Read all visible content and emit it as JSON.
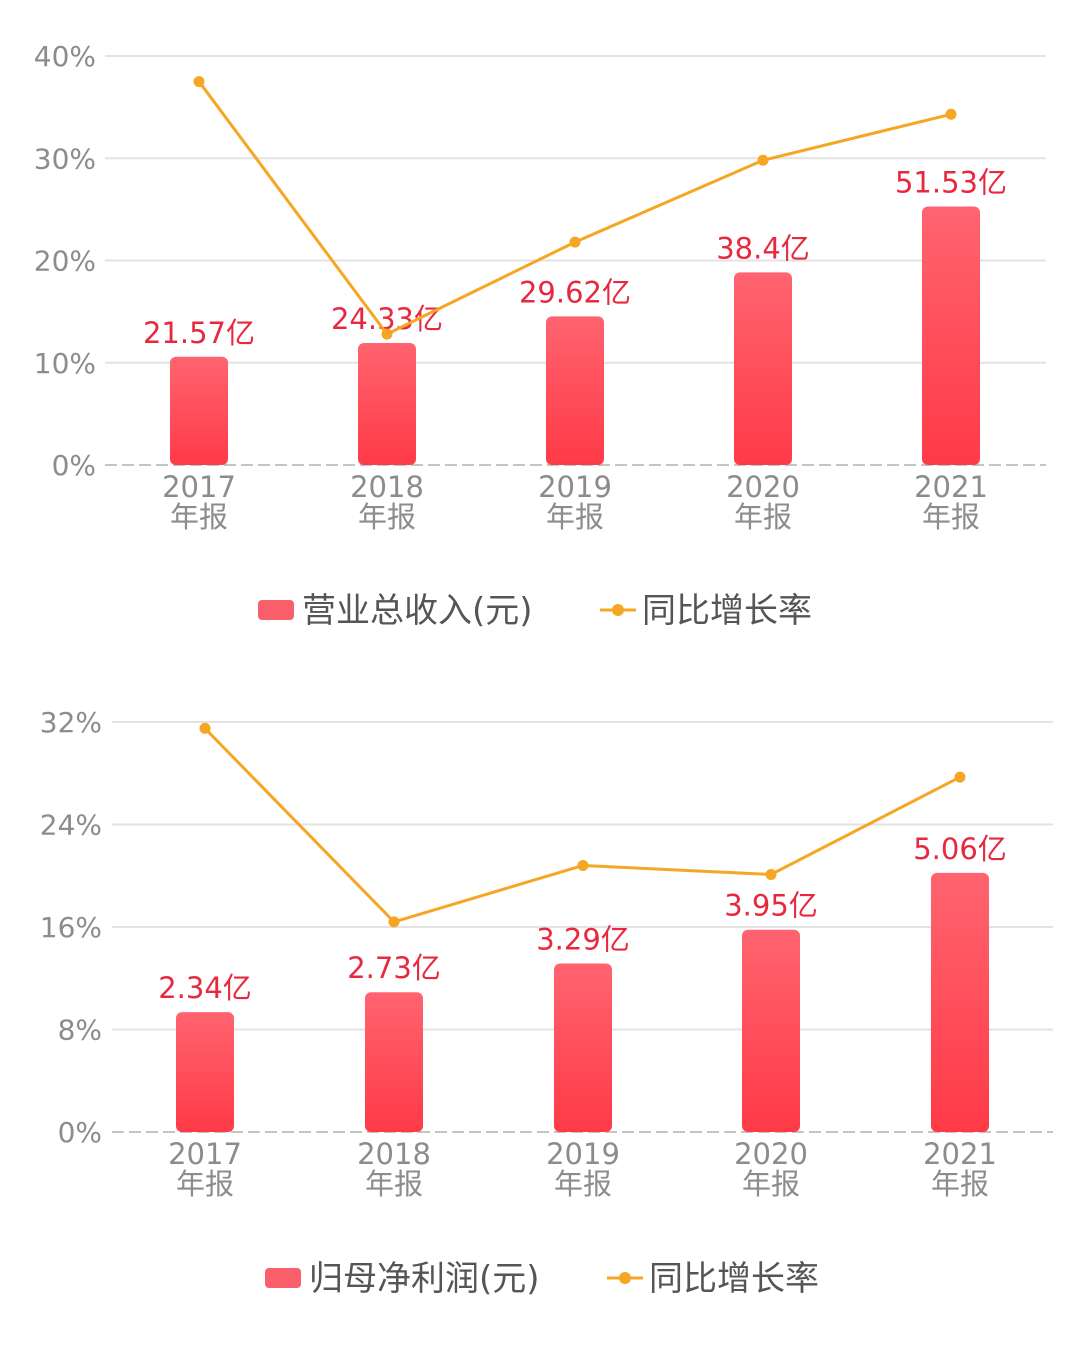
{
  "chart_data": [
    {
      "type": "bar+line",
      "categories": [
        [
          "2017",
          "年报"
        ],
        [
          "2018",
          "年报"
        ],
        [
          "2019",
          "年报"
        ],
        [
          "2020",
          "年报"
        ],
        [
          "2021",
          "年报"
        ]
      ],
      "bar_series": {
        "name": "营业总收入(元)",
        "values": [
          21.57,
          24.33,
          29.62,
          38.4,
          51.53
        ],
        "labels": [
          "21.57亿",
          "24.33亿",
          "29.62亿",
          "38.4亿",
          "51.53亿"
        ],
        "unit": "亿"
      },
      "line_series": {
        "name": "同比增长率",
        "values": [
          37.5,
          12.8,
          21.8,
          29.8,
          34.3
        ],
        "unit": "%"
      },
      "y_ticks": [
        "0%",
        "10%",
        "20%",
        "30%",
        "40%"
      ],
      "ylim": [
        0,
        40
      ],
      "grid": true,
      "legend_placement": "bottom-center",
      "colors": {
        "bar_top": "#ff6470",
        "bar_bottom": "#ff3a47",
        "line": "#f5a623",
        "label": "#e8283f",
        "grid": "#e3e3e3"
      }
    },
    {
      "type": "bar+line",
      "categories": [
        [
          "2017",
          "年报"
        ],
        [
          "2018",
          "年报"
        ],
        [
          "2019",
          "年报"
        ],
        [
          "2020",
          "年报"
        ],
        [
          "2021",
          "年报"
        ]
      ],
      "bar_series": {
        "name": "归母净利润(元)",
        "values": [
          2.34,
          2.73,
          3.29,
          3.95,
          5.06
        ],
        "labels": [
          "2.34亿",
          "2.73亿",
          "3.29亿",
          "3.95亿",
          "5.06亿"
        ],
        "unit": "亿"
      },
      "line_series": {
        "name": "同比增长率",
        "values": [
          31.5,
          16.4,
          20.8,
          20.1,
          27.7
        ],
        "unit": "%"
      },
      "y_ticks": [
        "0%",
        "8%",
        "16%",
        "24%",
        "32%"
      ],
      "ylim": [
        0,
        32
      ],
      "grid": true,
      "legend_placement": "bottom-center",
      "colors": {
        "bar_top": "#ff6470",
        "bar_bottom": "#ff3a47",
        "line": "#f5a623",
        "label": "#e8283f",
        "grid": "#e3e3e3"
      }
    }
  ]
}
